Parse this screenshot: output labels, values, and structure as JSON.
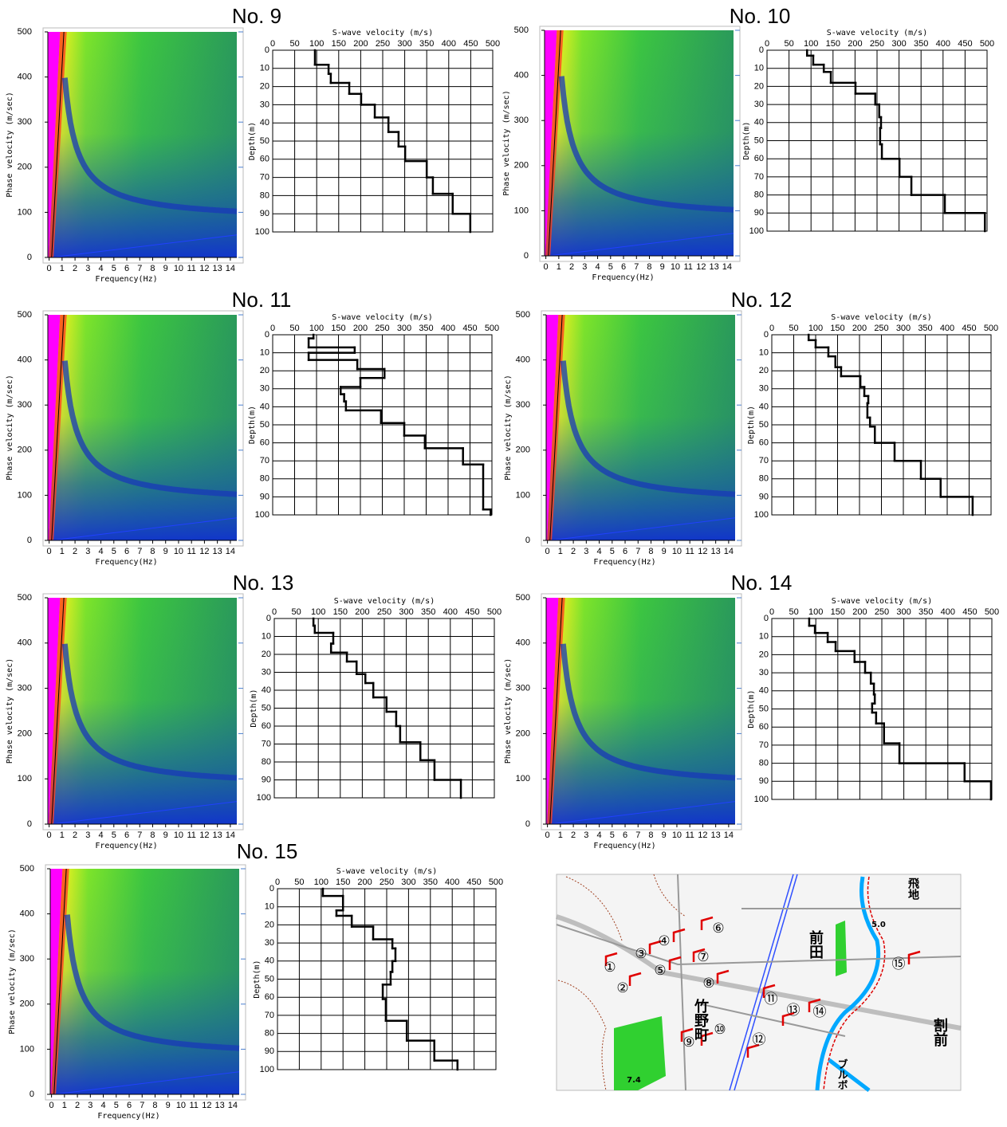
{
  "chart_data": [
    {
      "type": "dispersion",
      "title": "No. 9",
      "xlabel": "Frequency(Hz)",
      "ylabel": "Phase velocity (m/sec)",
      "xlim": [
        -0.1,
        14.5
      ],
      "ylim": [
        0,
        500
      ],
      "xticks": [
        0,
        1,
        2,
        3,
        4,
        5,
        6,
        7,
        8,
        9,
        10,
        11,
        12,
        13,
        14
      ],
      "yticks": [
        0,
        100,
        200,
        300,
        400,
        500
      ]
    },
    {
      "type": "step",
      "xlabel": "S-wave velocity (m/s)",
      "ylabel": "Depth(m)",
      "xlim": [
        0,
        500
      ],
      "ylim": [
        0,
        100
      ],
      "xticks": [
        0,
        50,
        100,
        150,
        200,
        250,
        300,
        350,
        400,
        450,
        500
      ],
      "yticks": [
        0,
        10,
        20,
        30,
        40,
        50,
        60,
        70,
        80,
        90,
        100
      ],
      "grid": true,
      "color": "#000000",
      "velocities": [
        96,
        127,
        132,
        174,
        201,
        232,
        263,
        286,
        301,
        350,
        364,
        409,
        449
      ],
      "depths": [
        0,
        8,
        13,
        18,
        24,
        30,
        37,
        45,
        53,
        61,
        70,
        79,
        90,
        100
      ]
    },
    {
      "type": "dispersion",
      "title": "No. 10",
      "xlabel": "Frequency(Hz)",
      "ylabel": "Phase velocity (m/sec)",
      "xlim": [
        -0.1,
        14.5
      ],
      "ylim": [
        0,
        500
      ],
      "xticks": [
        0,
        1,
        2,
        3,
        4,
        5,
        6,
        7,
        8,
        9,
        10,
        11,
        12,
        13,
        14
      ],
      "yticks": [
        0,
        100,
        200,
        300,
        400,
        500
      ]
    },
    {
      "type": "step",
      "xlabel": "S-wave velocity (m/s)",
      "ylabel": "Depth(m)",
      "xlim": [
        0,
        500
      ],
      "ylim": [
        0,
        100
      ],
      "xticks": [
        0,
        50,
        100,
        150,
        200,
        250,
        300,
        350,
        400,
        450,
        500
      ],
      "yticks": [
        0,
        10,
        20,
        30,
        40,
        50,
        60,
        70,
        80,
        90,
        100
      ],
      "grid": true,
      "color": "#000000",
      "velocities": [
        91,
        105,
        129,
        145,
        201,
        246,
        255,
        259,
        257,
        261,
        301,
        328,
        404,
        495
      ],
      "depths": [
        0,
        3,
        8,
        12,
        18,
        24,
        30,
        37,
        43,
        52,
        60,
        70,
        80,
        90,
        100
      ]
    },
    {
      "type": "dispersion",
      "title": "No. 11",
      "xlabel": "Frequency(Hz)",
      "ylabel": "Phase velocity (m/sec)",
      "xlim": [
        -0.1,
        14.5
      ],
      "ylim": [
        0,
        500
      ],
      "xticks": [
        0,
        1,
        2,
        3,
        4,
        5,
        6,
        7,
        8,
        9,
        10,
        11,
        12,
        13,
        14
      ],
      "yticks": [
        0,
        100,
        200,
        300,
        400,
        500
      ]
    },
    {
      "type": "step",
      "xlabel": "S-wave velocity (m/s)",
      "ylabel": "Depth(m)",
      "xlim": [
        0,
        500
      ],
      "ylim": [
        0,
        100
      ],
      "xticks": [
        0,
        50,
        100,
        150,
        200,
        250,
        300,
        350,
        400,
        450,
        500
      ],
      "yticks": [
        0,
        10,
        20,
        30,
        40,
        50,
        60,
        70,
        80,
        90,
        100
      ],
      "grid": true,
      "color": "#000000",
      "velocities": [
        93,
        82,
        187,
        82,
        193,
        255,
        200,
        155,
        163,
        167,
        247,
        300,
        347,
        434,
        480,
        497
      ],
      "depths": [
        0,
        2,
        7,
        10,
        14,
        19,
        24,
        29,
        33,
        37,
        42,
        49,
        56,
        63,
        72,
        97,
        100
      ]
    },
    {
      "type": "dispersion",
      "title": "No. 12",
      "xlabel": "Frequency(Hz)",
      "ylabel": "Phase velocity (m/sec)",
      "xlim": [
        -0.1,
        14.5
      ],
      "ylim": [
        0,
        500
      ],
      "xticks": [
        0,
        1,
        2,
        3,
        4,
        5,
        6,
        7,
        8,
        9,
        10,
        11,
        12,
        13,
        14
      ],
      "yticks": [
        0,
        100,
        200,
        300,
        400,
        500
      ]
    },
    {
      "type": "step",
      "xlabel": "S-wave velocity (m/s)",
      "ylabel": "Depth(m)",
      "xlim": [
        0,
        500
      ],
      "ylim": [
        0,
        100
      ],
      "xticks": [
        0,
        50,
        100,
        150,
        200,
        250,
        300,
        350,
        400,
        450,
        500
      ],
      "yticks": [
        0,
        10,
        20,
        30,
        40,
        50,
        60,
        70,
        80,
        90,
        100
      ],
      "grid": true,
      "color": "#000000",
      "velocities": [
        84,
        100,
        129,
        145,
        158,
        202,
        211,
        220,
        218,
        224,
        235,
        280,
        340,
        385,
        458
      ],
      "depths": [
        0,
        3,
        7,
        12,
        18,
        23,
        29,
        34,
        38,
        46,
        51,
        60,
        70,
        80,
        90,
        100
      ]
    },
    {
      "type": "dispersion",
      "title": "No. 13",
      "xlabel": "Frequency(Hz)",
      "ylabel": "Phase velocity (m/sec)",
      "xlim": [
        -0.1,
        14.5
      ],
      "ylim": [
        0,
        500
      ],
      "xticks": [
        0,
        1,
        2,
        3,
        4,
        5,
        6,
        7,
        8,
        9,
        10,
        11,
        12,
        13,
        14
      ],
      "yticks": [
        0,
        100,
        200,
        300,
        400,
        500
      ]
    },
    {
      "type": "step",
      "xlabel": "S-wave velocity (m/s)",
      "ylabel": "Depth(m)",
      "xlim": [
        0,
        500
      ],
      "ylim": [
        0,
        100
      ],
      "xticks": [
        0,
        50,
        100,
        150,
        200,
        250,
        300,
        350,
        400,
        450,
        500
      ],
      "yticks": [
        0,
        10,
        20,
        30,
        40,
        50,
        60,
        70,
        80,
        90,
        100
      ],
      "grid": true,
      "color": "#000000",
      "velocities": [
        89,
        92,
        134,
        129,
        165,
        187,
        207,
        225,
        255,
        277,
        286,
        332,
        364,
        424
      ],
      "depths": [
        0,
        4,
        8,
        14,
        19,
        24,
        31,
        36,
        44,
        52,
        60,
        69,
        79,
        90,
        100
      ]
    },
    {
      "type": "dispersion",
      "title": "No. 14",
      "xlabel": "Frequency(Hz)",
      "ylabel": "Phase velocity (m/sec)",
      "xlim": [
        -0.1,
        14.5
      ],
      "ylim": [
        0,
        500
      ],
      "xticks": [
        0,
        1,
        2,
        3,
        4,
        5,
        6,
        7,
        8,
        9,
        10,
        11,
        12,
        13,
        14
      ],
      "yticks": [
        0,
        100,
        200,
        300,
        400,
        500
      ]
    },
    {
      "type": "step",
      "xlabel": "S-wave velocity (m/s)",
      "ylabel": "Depth(m)",
      "xlim": [
        0,
        500
      ],
      "ylim": [
        0,
        100
      ],
      "xticks": [
        0,
        50,
        100,
        150,
        200,
        250,
        300,
        350,
        400,
        450,
        500
      ],
      "yticks": [
        0,
        10,
        20,
        30,
        40,
        50,
        60,
        70,
        80,
        90,
        100
      ],
      "grid": true,
      "color": "#000000",
      "velocities": [
        85,
        98,
        127,
        145,
        188,
        212,
        225,
        232,
        234,
        228,
        237,
        255,
        290,
        438,
        498
      ],
      "depths": [
        0,
        4,
        8,
        13,
        18,
        24,
        30,
        36,
        42,
        47,
        52,
        58,
        69,
        80,
        90,
        100
      ]
    },
    {
      "type": "dispersion",
      "title": "No. 15",
      "xlabel": "Frequency(Hz)",
      "ylabel": "Phase velocity (m/sec)",
      "xlim": [
        -0.1,
        14.5
      ],
      "ylim": [
        0,
        500
      ],
      "xticks": [
        0,
        1,
        2,
        3,
        4,
        5,
        6,
        7,
        8,
        9,
        10,
        11,
        12,
        13,
        14
      ],
      "yticks": [
        0,
        100,
        200,
        300,
        400,
        500
      ]
    },
    {
      "type": "step",
      "xlabel": "S-wave velocity (m/s)",
      "ylabel": "Depth(m)",
      "xlim": [
        0,
        500
      ],
      "ylim": [
        0,
        100
      ],
      "xticks": [
        0,
        50,
        100,
        150,
        200,
        250,
        300,
        350,
        400,
        450,
        500
      ],
      "yticks": [
        0,
        10,
        20,
        30,
        40,
        50,
        60,
        70,
        80,
        90,
        100
      ],
      "grid": true,
      "color": "#000000",
      "velocities": [
        104,
        150,
        135,
        170,
        219,
        263,
        270,
        263,
        259,
        241,
        248,
        296,
        359,
        412
      ],
      "depths": [
        0,
        4,
        12,
        15,
        21,
        28,
        33,
        40,
        46,
        53,
        61,
        73,
        84,
        95,
        100
      ]
    }
  ],
  "map": {
    "labels": [
      "①",
      "②",
      "③",
      "④",
      "⑤",
      "⑥",
      "⑦",
      "⑧",
      "⑨",
      "⑩",
      "⑪",
      "⑫",
      "⑬",
      "⑭",
      "⑮"
    ],
    "place_names": [
      "前田",
      "竹野町",
      "割前",
      "飛地",
      "ブルボ",
      "5.0",
      "7.4"
    ]
  }
}
